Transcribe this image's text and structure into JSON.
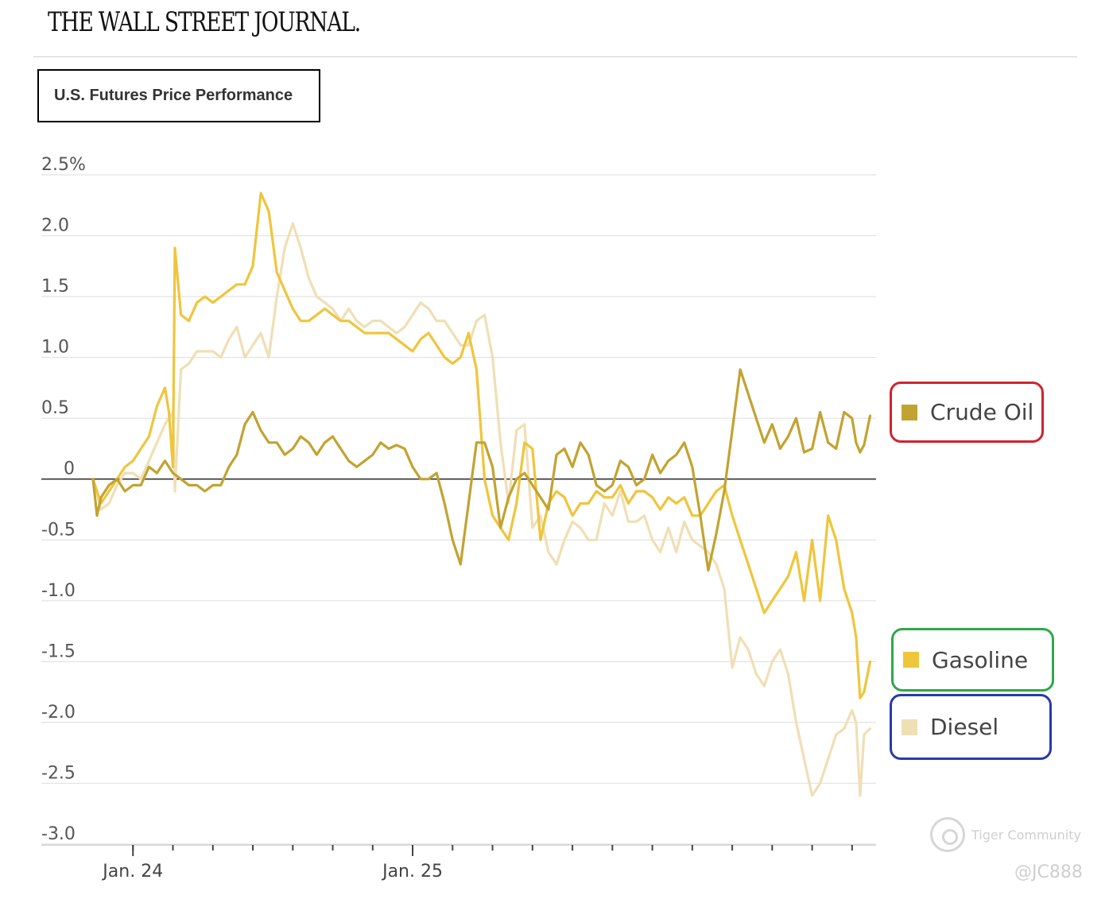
{
  "header": {
    "masthead": "THE WALL STREET JOURNAL."
  },
  "chart_data": {
    "type": "line",
    "title": "U.S. Futures Price Performance",
    "y_tick_labels": [
      "2.5%",
      "2.0",
      "1.5",
      "1.0",
      "0.5",
      "0",
      "-0.5",
      "-1.0",
      "-1.5",
      "-2.0",
      "-2.5",
      "-3.0"
    ],
    "y_ticks": [
      2.5,
      2.0,
      1.5,
      1.0,
      0.5,
      0,
      -0.5,
      -1.0,
      -1.5,
      -2.0,
      -2.5,
      -3.0
    ],
    "ylim": [
      -3.0,
      2.5
    ],
    "x_tick_labels": [
      "Jan. 24",
      "Jan. 25"
    ],
    "x_tick_positions": [
      1,
      8
    ],
    "xlim": [
      0,
      19.6
    ],
    "grid": true,
    "legend_position": "right",
    "series": [
      {
        "name": "Crude Oil",
        "color": "#c2a331",
        "x": [
          0,
          0.1,
          0.2,
          0.4,
          0.6,
          0.8,
          1.0,
          1.2,
          1.4,
          1.6,
          1.8,
          2.0,
          2.2,
          2.4,
          2.6,
          2.8,
          3.0,
          3.2,
          3.4,
          3.6,
          3.8,
          4.0,
          4.2,
          4.4,
          4.6,
          4.8,
          5.0,
          5.2,
          5.4,
          5.6,
          5.8,
          6.0,
          6.2,
          6.4,
          6.6,
          6.8,
          7.0,
          7.2,
          7.4,
          7.6,
          7.8,
          8.0,
          8.2,
          8.4,
          8.6,
          8.8,
          9.0,
          9.2,
          9.4,
          9.6,
          9.8,
          10.0,
          10.2,
          10.4,
          10.6,
          10.8,
          11.0,
          11.2,
          11.4,
          11.6,
          11.8,
          12.0,
          12.2,
          12.4,
          12.6,
          12.8,
          13.0,
          13.2,
          13.4,
          13.6,
          13.8,
          14.0,
          14.2,
          14.4,
          14.6,
          14.8,
          15.0,
          15.2,
          15.4,
          15.6,
          15.8,
          16.0,
          16.2,
          16.4,
          16.6,
          16.8,
          17.0,
          17.2,
          17.4,
          17.6,
          17.8,
          18.0,
          18.2,
          18.4,
          18.6,
          18.8,
          19.0,
          19.1,
          19.2,
          19.3,
          19.45
        ],
        "y": [
          0,
          -0.3,
          -0.15,
          -0.05,
          0,
          -0.1,
          -0.05,
          -0.05,
          0.1,
          0.05,
          0.15,
          0.05,
          0,
          -0.05,
          -0.05,
          -0.1,
          -0.05,
          -0.05,
          0.1,
          0.2,
          0.45,
          0.55,
          0.4,
          0.3,
          0.3,
          0.2,
          0.25,
          0.35,
          0.3,
          0.2,
          0.3,
          0.35,
          0.25,
          0.15,
          0.1,
          0.15,
          0.2,
          0.3,
          0.25,
          0.28,
          0.25,
          0.1,
          0.0,
          0.0,
          0.05,
          -0.2,
          -0.5,
          -0.7,
          -0.2,
          0.3,
          0.3,
          0.1,
          -0.4,
          -0.15,
          0.0,
          0.05,
          -0.05,
          -0.15,
          -0.25,
          0.2,
          0.25,
          0.1,
          0.3,
          0.2,
          -0.05,
          -0.1,
          -0.05,
          0.15,
          0.1,
          -0.05,
          0.0,
          0.2,
          0.05,
          0.15,
          0.2,
          0.3,
          0.1,
          -0.3,
          -0.75,
          -0.45,
          -0.1,
          0.4,
          0.9,
          0.7,
          0.5,
          0.3,
          0.45,
          0.25,
          0.35,
          0.5,
          0.22,
          0.25,
          0.55,
          0.3,
          0.25,
          0.55,
          0.5,
          0.3,
          0.22,
          0.28,
          0.52
        ]
      },
      {
        "name": "Gasoline",
        "color": "#efc53c",
        "x": [
          0,
          0.2,
          0.4,
          0.6,
          0.8,
          1.0,
          1.2,
          1.4,
          1.6,
          1.8,
          1.9,
          2.0,
          2.05,
          2.2,
          2.4,
          2.6,
          2.8,
          3.0,
          3.2,
          3.4,
          3.6,
          3.8,
          4.0,
          4.2,
          4.4,
          4.6,
          4.8,
          5.0,
          5.2,
          5.4,
          5.6,
          5.8,
          6.0,
          6.2,
          6.4,
          6.6,
          6.8,
          7.0,
          7.2,
          7.4,
          7.6,
          7.8,
          8.0,
          8.2,
          8.4,
          8.6,
          8.8,
          9.0,
          9.2,
          9.4,
          9.6,
          9.8,
          10.0,
          10.2,
          10.4,
          10.6,
          10.8,
          11.0,
          11.2,
          11.4,
          11.6,
          11.8,
          12.0,
          12.2,
          12.4,
          12.6,
          12.8,
          13.0,
          13.2,
          13.4,
          13.6,
          13.8,
          14.0,
          14.2,
          14.4,
          14.6,
          14.8,
          15.0,
          15.2,
          15.4,
          15.6,
          15.8,
          16.0,
          16.2,
          16.4,
          16.6,
          16.8,
          17.0,
          17.2,
          17.4,
          17.6,
          17.8,
          18.0,
          18.2,
          18.4,
          18.6,
          18.8,
          19.0,
          19.1,
          19.2,
          19.3,
          19.45
        ],
        "y": [
          0,
          -0.2,
          -0.1,
          0.0,
          0.1,
          0.15,
          0.25,
          0.35,
          0.6,
          0.75,
          0.55,
          0.1,
          1.9,
          1.35,
          1.3,
          1.45,
          1.5,
          1.45,
          1.5,
          1.55,
          1.6,
          1.6,
          1.75,
          2.35,
          2.2,
          1.7,
          1.55,
          1.4,
          1.3,
          1.3,
          1.35,
          1.4,
          1.35,
          1.3,
          1.3,
          1.25,
          1.2,
          1.2,
          1.2,
          1.2,
          1.15,
          1.1,
          1.05,
          1.15,
          1.2,
          1.1,
          1.0,
          0.95,
          1.0,
          1.2,
          0.9,
          0.0,
          -0.3,
          -0.4,
          -0.5,
          -0.2,
          0.3,
          0.25,
          -0.5,
          -0.2,
          -0.1,
          -0.15,
          -0.3,
          -0.2,
          -0.2,
          -0.1,
          -0.15,
          -0.15,
          -0.05,
          -0.2,
          -0.1,
          -0.1,
          -0.15,
          -0.25,
          -0.15,
          -0.2,
          -0.15,
          -0.3,
          -0.3,
          -0.2,
          -0.1,
          -0.05,
          -0.3,
          -0.5,
          -0.7,
          -0.9,
          -1.1,
          -1.0,
          -0.9,
          -0.8,
          -0.6,
          -1.0,
          -0.5,
          -1.0,
          -0.3,
          -0.5,
          -0.9,
          -1.1,
          -1.3,
          -1.8,
          -1.75,
          -1.5
        ]
      },
      {
        "name": "Diesel",
        "color": "#f0dfb5",
        "x": [
          0,
          0.2,
          0.4,
          0.6,
          0.8,
          1.0,
          1.2,
          1.4,
          1.6,
          1.8,
          1.9,
          2.0,
          2.05,
          2.2,
          2.4,
          2.6,
          2.8,
          3.0,
          3.2,
          3.4,
          3.6,
          3.8,
          4.0,
          4.2,
          4.4,
          4.6,
          4.8,
          5.0,
          5.2,
          5.4,
          5.6,
          5.8,
          6.0,
          6.2,
          6.4,
          6.6,
          6.8,
          7.0,
          7.2,
          7.4,
          7.6,
          7.8,
          8.0,
          8.2,
          8.4,
          8.6,
          8.8,
          9.0,
          9.2,
          9.4,
          9.6,
          9.8,
          10.0,
          10.2,
          10.4,
          10.6,
          10.8,
          11.0,
          11.2,
          11.4,
          11.6,
          11.8,
          12.0,
          12.2,
          12.4,
          12.6,
          12.8,
          13.0,
          13.2,
          13.4,
          13.6,
          13.8,
          14.0,
          14.2,
          14.4,
          14.6,
          14.8,
          15.0,
          15.2,
          15.4,
          15.6,
          15.8,
          16.0,
          16.2,
          16.4,
          16.6,
          16.8,
          17.0,
          17.2,
          17.4,
          17.6,
          17.8,
          18.0,
          18.2,
          18.4,
          18.6,
          18.8,
          19.0,
          19.1,
          19.2,
          19.3,
          19.45
        ],
        "y": [
          0,
          -0.25,
          -0.2,
          -0.05,
          0.05,
          0.05,
          0.0,
          0.15,
          0.3,
          0.45,
          0.5,
          0.55,
          -0.1,
          0.9,
          0.95,
          1.05,
          1.05,
          1.05,
          1.0,
          1.15,
          1.25,
          1.0,
          1.1,
          1.2,
          1.0,
          1.5,
          1.9,
          2.1,
          1.9,
          1.65,
          1.5,
          1.45,
          1.4,
          1.3,
          1.4,
          1.3,
          1.25,
          1.3,
          1.3,
          1.25,
          1.2,
          1.25,
          1.35,
          1.45,
          1.4,
          1.3,
          1.3,
          1.2,
          1.1,
          1.1,
          1.3,
          1.35,
          1.0,
          0.3,
          -0.2,
          0.4,
          0.45,
          -0.4,
          -0.3,
          -0.6,
          -0.7,
          -0.5,
          -0.35,
          -0.4,
          -0.5,
          -0.5,
          -0.2,
          -0.3,
          -0.1,
          -0.35,
          -0.35,
          -0.3,
          -0.5,
          -0.6,
          -0.4,
          -0.6,
          -0.35,
          -0.5,
          -0.55,
          -0.6,
          -0.7,
          -0.9,
          -1.55,
          -1.3,
          -1.4,
          -1.6,
          -1.7,
          -1.5,
          -1.4,
          -1.6,
          -2.0,
          -2.3,
          -2.6,
          -2.5,
          -2.3,
          -2.1,
          -2.05,
          -1.9,
          -2.0,
          -2.6,
          -2.1,
          -2.05
        ]
      }
    ]
  },
  "legend": {
    "items": [
      {
        "label": "Crude Oil",
        "color": "#c2a331",
        "frame": "#d0232f"
      },
      {
        "label": "Gasoline",
        "color": "#efc53c",
        "frame": "#2fa84a"
      },
      {
        "label": "Diesel",
        "color": "#f0dfb5",
        "frame": "#2b3aa8"
      }
    ]
  },
  "watermark": {
    "brand": "Tiger Community",
    "handle": "@JC888"
  }
}
